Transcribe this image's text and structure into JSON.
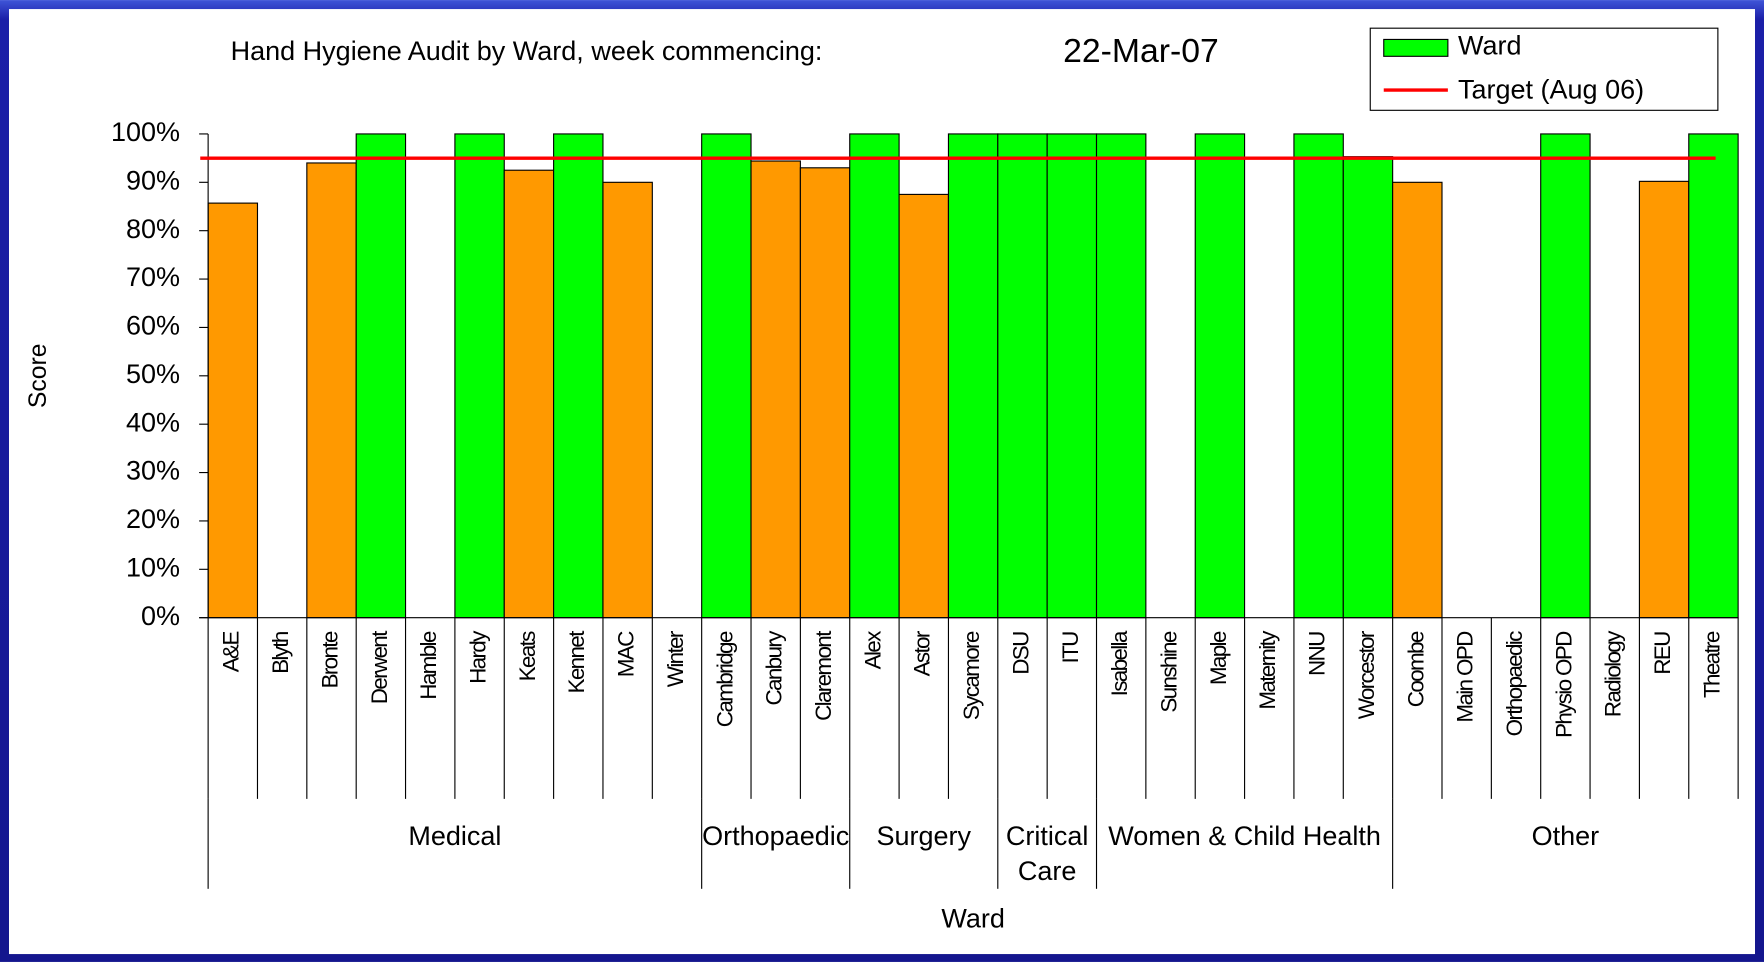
{
  "chart_data": {
    "type": "bar",
    "title": "Hand Hygiene Audit by Ward, week commencing:",
    "subtitle": "22-Mar-07",
    "y_label": "Score",
    "x_label": "Ward",
    "categories": [
      "A&E",
      "Blyth",
      "Bronte",
      "Derwent",
      "Hamble",
      "Hardy",
      "Keats",
      "Kennet",
      "MAC",
      "Winter",
      "Cambridge",
      "Canbury",
      "Claremont",
      "Alex",
      "Astor",
      "Sycamore",
      "DSU",
      "ITU",
      "Isabella",
      "Sunshine",
      "Maple",
      "Maternity",
      "NNU",
      "Worcestor",
      "Coombe",
      "Main OPD",
      "Orthopaedic",
      "Physio OPD",
      "Radiology",
      "REU",
      "Theatre"
    ],
    "series": [
      {
        "name": "Ward",
        "color": "#00ff00",
        "values": [
          85.7,
          null,
          94,
          100,
          null,
          100,
          92.5,
          100,
          90,
          null,
          100,
          94.4,
          93,
          100,
          87.5,
          100,
          100,
          100,
          100,
          null,
          100,
          null,
          100,
          95.3,
          90,
          null,
          null,
          100,
          null,
          90.2,
          100
        ]
      }
    ],
    "below_target_color": "#ff9900",
    "target": {
      "name": "Target (Aug 06)",
      "color": "#ff0000",
      "value": 95
    },
    "groups": [
      {
        "label": "Medical",
        "size": 10
      },
      {
        "label": "Orthopaedic",
        "size": 3
      },
      {
        "label": "Surgery",
        "size": 3
      },
      {
        "label": "Critical Care",
        "size": 2
      },
      {
        "label": "Women & Child Health",
        "size": 6
      },
      {
        "label": "Other",
        "size": 7
      }
    ],
    "ylim": [
      0,
      100
    ],
    "yticks": [
      {
        "value": 0,
        "label": "0%"
      },
      {
        "value": 10,
        "label": "10%"
      },
      {
        "value": 20,
        "label": "20%"
      },
      {
        "value": 30,
        "label": "30%"
      },
      {
        "value": 40,
        "label": "40%"
      },
      {
        "value": 50,
        "label": "50%"
      },
      {
        "value": 60,
        "label": "60%"
      },
      {
        "value": 70,
        "label": "70%"
      },
      {
        "value": 80,
        "label": "80%"
      },
      {
        "value": 90,
        "label": "90%"
      },
      {
        "value": 100,
        "label": "100%"
      }
    ],
    "legend": "top-right"
  }
}
